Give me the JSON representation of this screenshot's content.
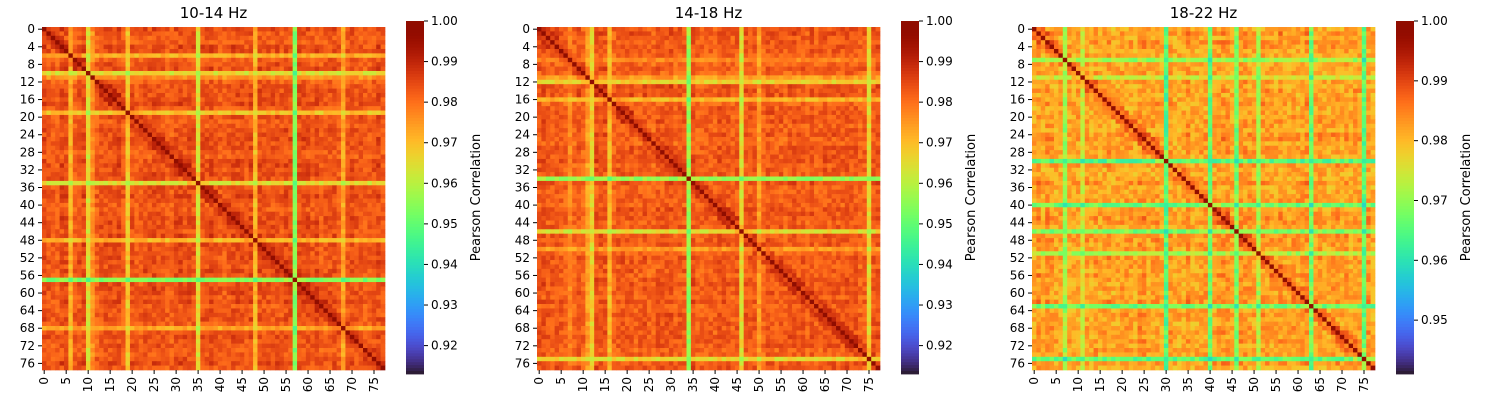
{
  "chart_data": [
    {
      "type": "heatmap",
      "title": "10-14 Hz",
      "n": 78,
      "x_ticks": [
        "0",
        "5",
        "10",
        "15",
        "20",
        "25",
        "30",
        "35",
        "40",
        "45",
        "50",
        "55",
        "60",
        "65",
        "70",
        "75"
      ],
      "y_ticks": [
        "0",
        "4",
        "8",
        "12",
        "16",
        "20",
        "24",
        "28",
        "32",
        "36",
        "40",
        "44",
        "48",
        "52",
        "56",
        "60",
        "64",
        "68",
        "72",
        "76"
      ],
      "colorbar": {
        "label": "Pearson Correlation",
        "range": [
          0.913,
          1.0
        ],
        "ticks": [
          "1.00",
          "0.99",
          "0.98",
          "0.97",
          "0.96",
          "0.95",
          "0.94",
          "0.93",
          "0.92"
        ]
      },
      "diagonal_value": 1.0,
      "background_value": 0.987,
      "low_rows": [
        {
          "index": 57,
          "value": 0.955
        },
        {
          "index": 10,
          "value": 0.966
        },
        {
          "index": 19,
          "value": 0.97
        },
        {
          "index": 35,
          "value": 0.966
        },
        {
          "index": 6,
          "value": 0.973
        },
        {
          "index": 48,
          "value": 0.972
        },
        {
          "index": 68,
          "value": 0.974
        },
        {
          "index": 11,
          "value": 0.977
        }
      ]
    },
    {
      "type": "heatmap",
      "title": "14-18 Hz",
      "n": 78,
      "x_ticks": [
        "0",
        "5",
        "10",
        "15",
        "20",
        "25",
        "30",
        "35",
        "40",
        "45",
        "50",
        "55",
        "60",
        "65",
        "70",
        "75"
      ],
      "y_ticks": [
        "0",
        "4",
        "8",
        "12",
        "16",
        "20",
        "24",
        "28",
        "32",
        "36",
        "40",
        "44",
        "48",
        "52",
        "56",
        "60",
        "64",
        "68",
        "72",
        "76"
      ],
      "colorbar": {
        "label": "Pearson Correlation",
        "range": [
          0.913,
          1.0
        ],
        "ticks": [
          "1.00",
          "0.99",
          "0.98",
          "0.97",
          "0.96",
          "0.95",
          "0.94",
          "0.93",
          "0.92"
        ]
      },
      "diagonal_value": 1.0,
      "background_value": 0.986,
      "low_rows": [
        {
          "index": 34,
          "value": 0.957
        },
        {
          "index": 12,
          "value": 0.968
        },
        {
          "index": 46,
          "value": 0.966
        },
        {
          "index": 75,
          "value": 0.967
        },
        {
          "index": 16,
          "value": 0.972
        },
        {
          "index": 11,
          "value": 0.975
        },
        {
          "index": 50,
          "value": 0.976
        },
        {
          "index": 7,
          "value": 0.978
        }
      ]
    },
    {
      "type": "heatmap",
      "title": "18-22 Hz",
      "n": 78,
      "x_ticks": [
        "0",
        "5",
        "10",
        "15",
        "20",
        "25",
        "30",
        "35",
        "40",
        "45",
        "50",
        "55",
        "60",
        "65",
        "70",
        "75"
      ],
      "y_ticks": [
        "0",
        "4",
        "8",
        "12",
        "16",
        "20",
        "24",
        "28",
        "32",
        "36",
        "40",
        "44",
        "48",
        "52",
        "56",
        "60",
        "64",
        "68",
        "72",
        "76"
      ],
      "colorbar": {
        "label": "Pearson Correlation",
        "range": [
          0.941,
          1.0
        ],
        "ticks": [
          "1.00",
          "0.99",
          "0.98",
          "0.97",
          "0.96",
          "0.95"
        ]
      },
      "diagonal_value": 1.0,
      "background_value": 0.986,
      "low_rows": [
        {
          "index": 30,
          "value": 0.966
        },
        {
          "index": 40,
          "value": 0.968
        },
        {
          "index": 46,
          "value": 0.969
        },
        {
          "index": 63,
          "value": 0.968
        },
        {
          "index": 75,
          "value": 0.967
        },
        {
          "index": 7,
          "value": 0.972
        },
        {
          "index": 51,
          "value": 0.973
        },
        {
          "index": 11,
          "value": 0.976
        }
      ]
    }
  ]
}
